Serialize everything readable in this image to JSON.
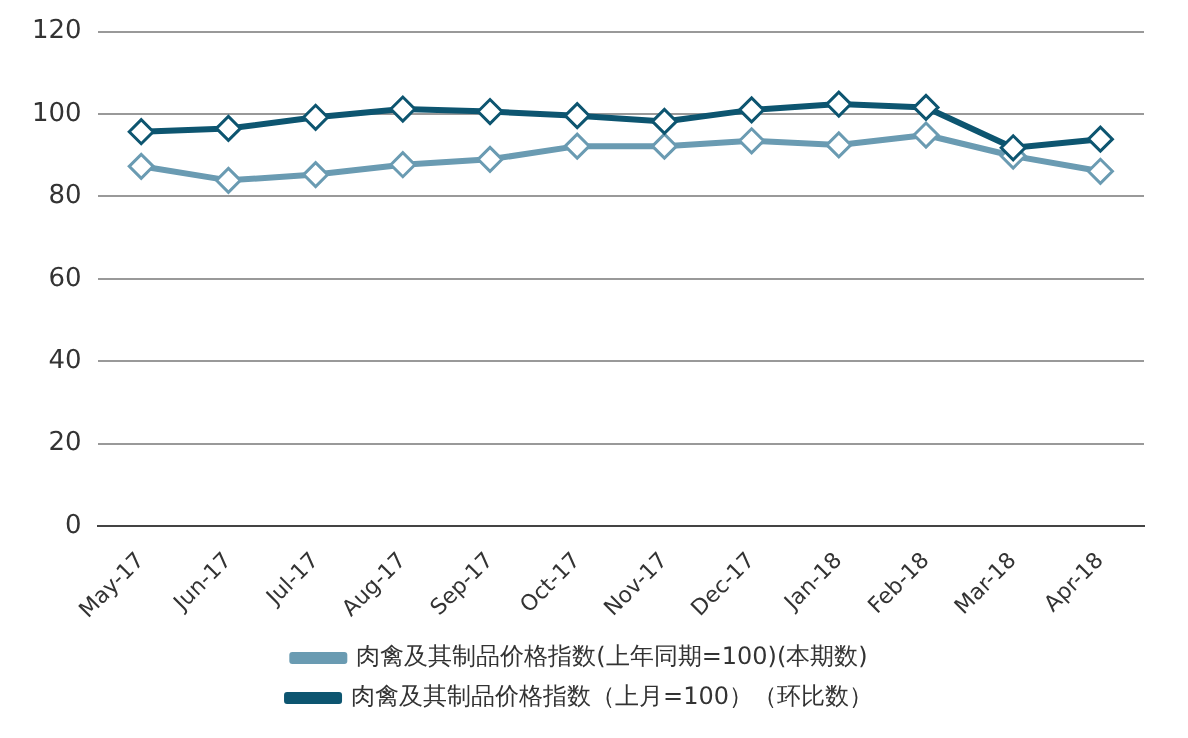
{
  "chart_data": {
    "type": "line",
    "categories": [
      "May-17",
      "Jun-17",
      "Jul-17",
      "Aug-17",
      "Sep-17",
      "Oct-17",
      "Nov-17",
      "Dec-17",
      "Jan-18",
      "Feb-18",
      "Mar-18",
      "Apr-18"
    ],
    "series": [
      {
        "name": "肉禽及其制品价格指数(上年同期=100)(本期数)",
        "color": "#6a9bb2",
        "values": [
          87.3,
          83.9,
          85.3,
          87.7,
          89.0,
          92.2,
          92.2,
          93.5,
          92.5,
          94.9,
          89.8,
          86.1
        ]
      },
      {
        "name": "肉禽及其制品价格指数（上月=100）（环比数）",
        "color": "#0d5570",
        "values": [
          95.7,
          96.5,
          99.2,
          101.2,
          100.6,
          99.6,
          98.2,
          101.0,
          102.4,
          101.6,
          91.8,
          93.9
        ]
      }
    ],
    "ylim": [
      0,
      120
    ],
    "yticks": [
      0,
      20,
      40,
      60,
      80,
      100,
      120
    ],
    "grid": "y",
    "legend": "bottom",
    "marker": "diamond",
    "line_style": "solid"
  }
}
